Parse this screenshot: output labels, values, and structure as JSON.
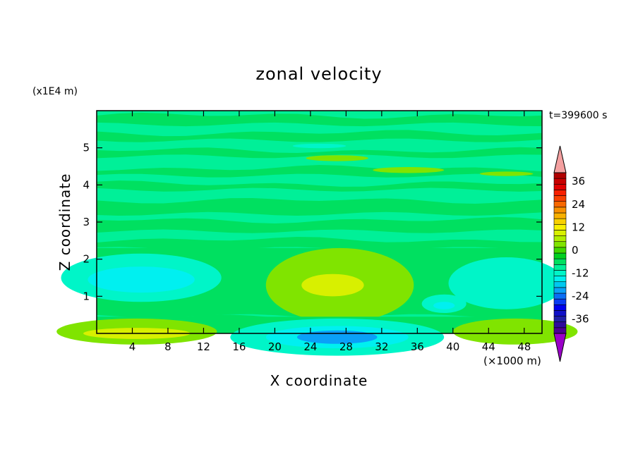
{
  "chart_data": {
    "type": "heatmap",
    "title": "zonal velocity",
    "xlabel": "X coordinate",
    "ylabel": "Z coordinate",
    "x_unit_label": "(×1000 m)",
    "y_unit_label": "(x1E4 m)",
    "time_label": "t=399600 s",
    "xlim": [
      0,
      50
    ],
    "ylim": [
      0,
      6
    ],
    "x_ticks": [
      4,
      8,
      12,
      16,
      20,
      24,
      28,
      32,
      36,
      40,
      44,
      48
    ],
    "y_ticks": [
      1,
      2,
      3,
      4,
      5
    ],
    "colorbar": {
      "levels": [
        -42,
        -39,
        -36,
        -33,
        -30,
        -27,
        -24,
        -21,
        -18,
        -15,
        -12,
        -9,
        -6,
        -3,
        0,
        3,
        6,
        9,
        12,
        15,
        18,
        21,
        24,
        27,
        30,
        33,
        36,
        39,
        42
      ],
      "tick_labels": [
        "36",
        "24",
        "12",
        "0",
        "-12",
        "-24",
        "-36"
      ],
      "tick_values": [
        36,
        24,
        12,
        0,
        -12,
        -24,
        -36
      ],
      "colors": [
        "#4b0094",
        "#2e0b9c",
        "#1f1fa8",
        "#1010c8",
        "#0000ee",
        "#0a3cf2",
        "#0a6ef5",
        "#0aa0f8",
        "#00c8f0",
        "#00f0f0",
        "#00f5c8",
        "#00f098",
        "#00e060",
        "#00d020",
        "#40d800",
        "#80e400",
        "#b0ee00",
        "#d8f000",
        "#f8f000",
        "#f8d000",
        "#f8b000",
        "#f89000",
        "#f86800",
        "#f84000",
        "#f82000",
        "#e00000",
        "#c80000",
        "#b00000"
      ],
      "over_color": "#f4a0a0",
      "under_color": "#9a00c8"
    },
    "field_description_values": {
      "background_u": 0,
      "features": [
        {
          "kind": "jet",
          "x_center": 27,
          "z_center": 1.3,
          "peak_u": 15
        },
        {
          "kind": "jet",
          "x_center": 24,
          "z_center": 1.4,
          "peak_u": 9
        },
        {
          "kind": "reverse",
          "x_center": 5,
          "z_center": 1.45,
          "peak_u": -13
        },
        {
          "kind": "reverse",
          "x_center": 46,
          "z_center": 1.3,
          "peak_u": -7
        },
        {
          "kind": "reverse",
          "x_center": 27,
          "z_center": 0.05,
          "peak_u": -13
        },
        {
          "kind": "surface",
          "x_center": 4,
          "z_center": 0.1,
          "peak_u": 10
        },
        {
          "kind": "surface",
          "x_center": 47,
          "z_center": 0.15,
          "peak_u": 8
        }
      ]
    }
  }
}
